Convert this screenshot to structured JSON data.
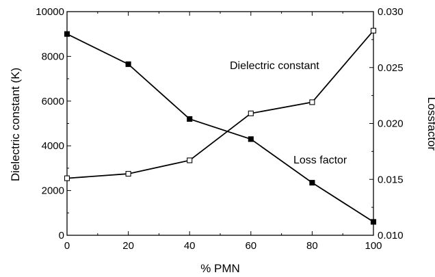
{
  "chart_data": {
    "type": "line",
    "title": "",
    "xlabel": "% PMN",
    "ylabel_left": "Dielectric constant (K)",
    "ylabel_right": "Lossfactor",
    "xlim": [
      0,
      100
    ],
    "ylim_left": [
      0,
      10000
    ],
    "ylim_right": [
      0.01,
      0.03
    ],
    "x_ticks": [
      0,
      20,
      40,
      60,
      80,
      100
    ],
    "y_left_ticks": [
      0,
      2000,
      4000,
      6000,
      8000,
      10000
    ],
    "y_right_ticks": [
      "0.010",
      "0.015",
      "0.020",
      "0.025",
      "0.030"
    ],
    "grid": false,
    "legend": "none",
    "series": [
      {
        "name": "Dielectric constant",
        "axis": "left",
        "marker": "open-square",
        "x": [
          0,
          20,
          40,
          60,
          80,
          100
        ],
        "values": [
          2550,
          2750,
          3350,
          5450,
          5950,
          9150
        ]
      },
      {
        "name": "Loss factor",
        "axis": "right",
        "marker": "filled-square",
        "x": [
          0,
          20,
          40,
          60,
          80,
          100
        ],
        "values": [
          0.028,
          0.0253,
          0.0204,
          0.0186,
          0.0147,
          0.0112
        ]
      }
    ],
    "colors": {
      "line": "#000000",
      "marker_fill_open": "#ffffff",
      "marker_fill_solid": "#000000"
    }
  }
}
